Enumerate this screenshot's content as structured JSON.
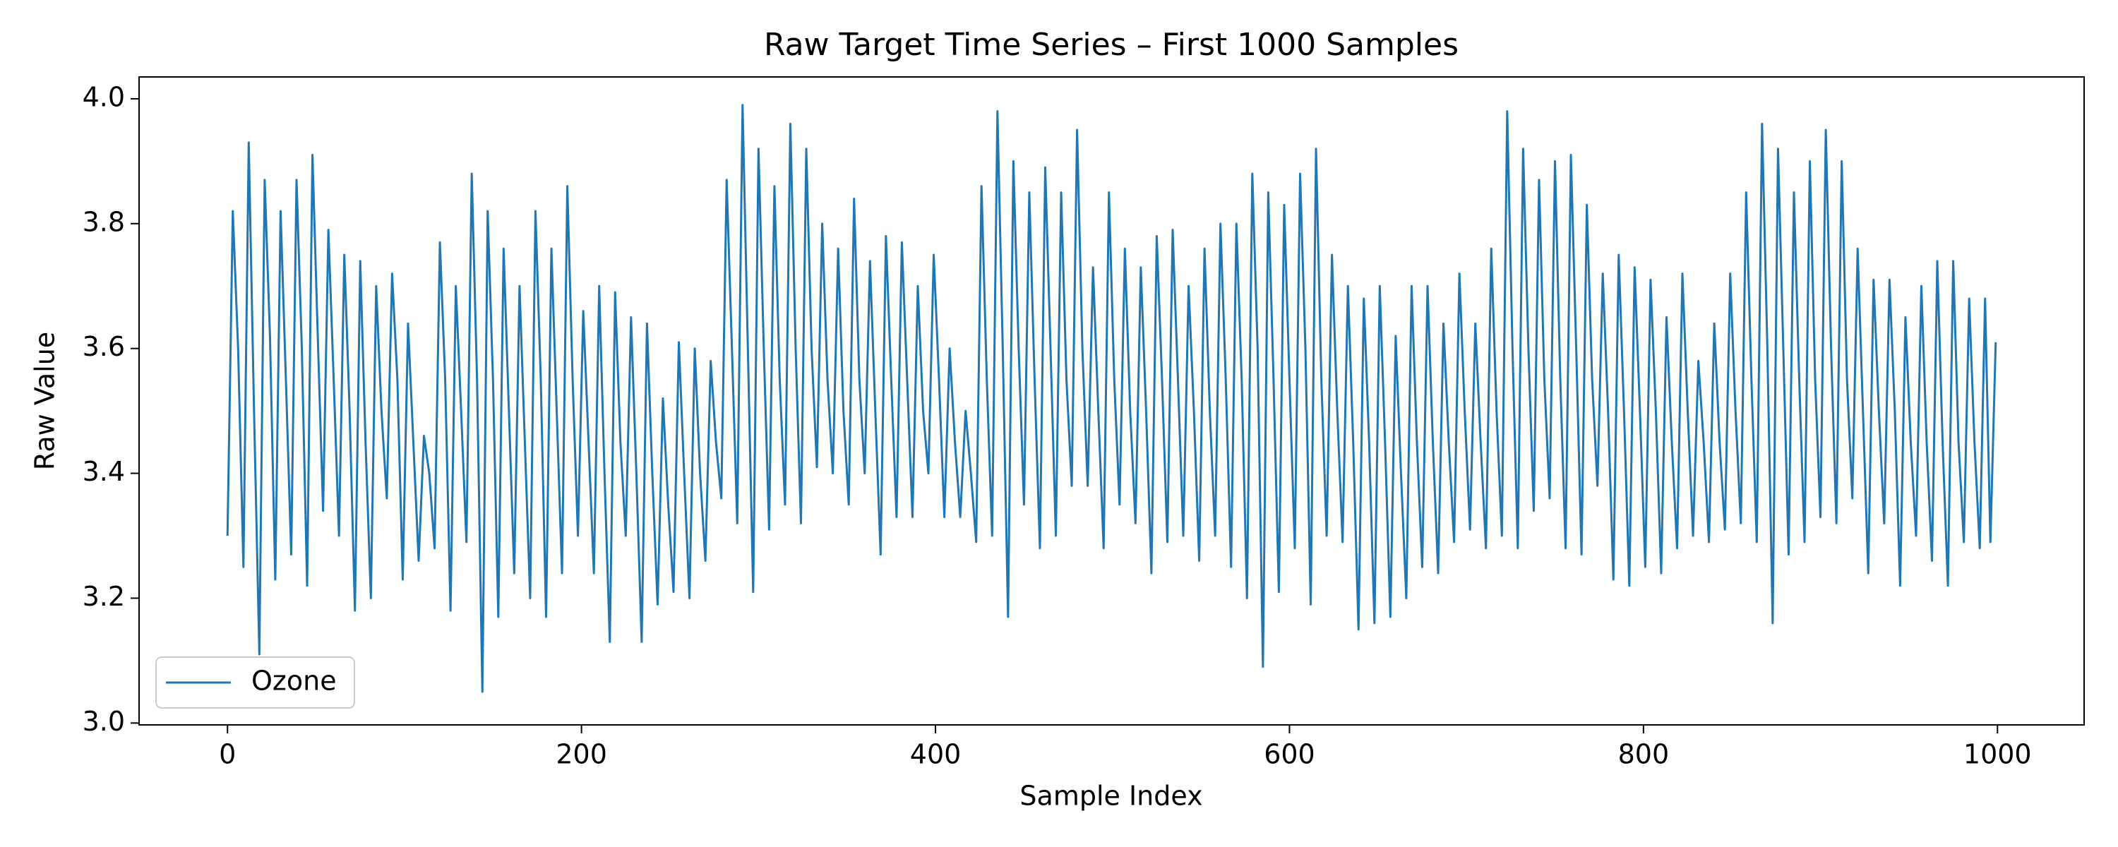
{
  "chart_data": {
    "type": "line",
    "title": "Raw Target Time Series – First 1000 Samples",
    "xlabel": "Sample Index",
    "ylabel": "Raw Value",
    "legend": "lower left",
    "grid": false,
    "xlim": [
      -49.95,
      1048.95
    ],
    "ylim": [
      2.997,
      4.035
    ],
    "xticks": [
      0,
      200,
      400,
      600,
      800,
      1000
    ],
    "yticks": [
      {
        "value": 3,
        "label": "3.0"
      },
      3.2,
      3.4,
      3.6,
      3.8,
      {
        "value": 4,
        "label": "4.0"
      }
    ],
    "x": [
      0,
      3,
      6,
      9,
      12,
      15,
      18,
      21,
      24,
      27,
      30,
      33,
      36,
      39,
      42,
      45,
      48,
      51,
      54,
      57,
      60,
      63,
      66,
      69,
      72,
      75,
      78,
      81,
      84,
      87,
      90,
      93,
      96,
      99,
      102,
      105,
      108,
      111,
      114,
      117,
      120,
      123,
      126,
      129,
      132,
      135,
      138,
      141,
      144,
      147,
      150,
      153,
      156,
      159,
      162,
      165,
      168,
      171,
      174,
      177,
      180,
      183,
      186,
      189,
      192,
      195,
      198,
      201,
      204,
      207,
      210,
      213,
      216,
      219,
      222,
      225,
      228,
      231,
      234,
      237,
      240,
      243,
      246,
      249,
      252,
      255,
      258,
      261,
      264,
      267,
      270,
      273,
      276,
      279,
      282,
      285,
      288,
      291,
      294,
      297,
      300,
      303,
      306,
      309,
      312,
      315,
      318,
      321,
      324,
      327,
      330,
      333,
      336,
      339,
      342,
      345,
      348,
      351,
      354,
      357,
      360,
      363,
      366,
      369,
      372,
      375,
      378,
      381,
      384,
      387,
      390,
      393,
      396,
      399,
      402,
      405,
      408,
      411,
      414,
      417,
      420,
      423,
      426,
      429,
      432,
      435,
      438,
      441,
      444,
      447,
      450,
      453,
      456,
      459,
      462,
      465,
      468,
      471,
      474,
      477,
      480,
      483,
      486,
      489,
      492,
      495,
      498,
      501,
      504,
      507,
      510,
      513,
      516,
      519,
      522,
      525,
      528,
      531,
      534,
      537,
      540,
      543,
      546,
      549,
      552,
      555,
      558,
      561,
      564,
      567,
      570,
      573,
      576,
      579,
      582,
      585,
      588,
      591,
      594,
      597,
      600,
      603,
      606,
      609,
      612,
      615,
      618,
      621,
      624,
      627,
      630,
      633,
      636,
      639,
      642,
      645,
      648,
      651,
      654,
      657,
      660,
      663,
      666,
      669,
      672,
      675,
      678,
      681,
      684,
      687,
      690,
      693,
      696,
      699,
      702,
      705,
      708,
      711,
      714,
      717,
      720,
      723,
      726,
      729,
      732,
      735,
      738,
      741,
      744,
      747,
      750,
      753,
      756,
      759,
      762,
      765,
      768,
      771,
      774,
      777,
      780,
      783,
      786,
      789,
      792,
      795,
      798,
      801,
      804,
      807,
      810,
      813,
      816,
      819,
      822,
      825,
      828,
      831,
      834,
      837,
      840,
      843,
      846,
      849,
      852,
      855,
      858,
      861,
      864,
      867,
      870,
      873,
      876,
      879,
      882,
      885,
      888,
      891,
      894,
      897,
      900,
      903,
      906,
      909,
      912,
      915,
      918,
      921,
      924,
      927,
      930,
      933,
      936,
      939,
      942,
      945,
      948,
      951,
      954,
      957,
      960,
      963,
      966,
      969,
      972,
      975,
      978,
      981,
      984,
      987,
      990,
      993,
      996,
      999
    ],
    "series": [
      {
        "name": "Ozone",
        "color": "#1f77b4",
        "values": [
          3.3,
          3.82,
          3.6,
          3.25,
          3.93,
          3.5,
          3.11,
          3.87,
          3.62,
          3.23,
          3.82,
          3.55,
          3.27,
          3.87,
          3.6,
          3.22,
          3.91,
          3.62,
          3.34,
          3.79,
          3.55,
          3.3,
          3.75,
          3.5,
          3.18,
          3.74,
          3.45,
          3.2,
          3.7,
          3.5,
          3.36,
          3.72,
          3.55,
          3.23,
          3.64,
          3.45,
          3.26,
          3.46,
          3.4,
          3.28,
          3.77,
          3.55,
          3.18,
          3.7,
          3.5,
          3.29,
          3.88,
          3.55,
          3.05,
          3.82,
          3.55,
          3.17,
          3.76,
          3.5,
          3.24,
          3.7,
          3.45,
          3.2,
          3.82,
          3.55,
          3.17,
          3.76,
          3.5,
          3.24,
          3.86,
          3.55,
          3.3,
          3.66,
          3.45,
          3.24,
          3.7,
          3.4,
          3.13,
          3.69,
          3.45,
          3.3,
          3.65,
          3.4,
          3.13,
          3.64,
          3.4,
          3.19,
          3.52,
          3.35,
          3.21,
          3.61,
          3.4,
          3.2,
          3.6,
          3.4,
          3.26,
          3.58,
          3.45,
          3.36,
          3.87,
          3.6,
          3.32,
          3.99,
          3.6,
          3.21,
          3.92,
          3.6,
          3.31,
          3.86,
          3.55,
          3.35,
          3.96,
          3.6,
          3.32,
          3.92,
          3.6,
          3.41,
          3.8,
          3.55,
          3.4,
          3.76,
          3.5,
          3.35,
          3.84,
          3.55,
          3.4,
          3.74,
          3.5,
          3.27,
          3.78,
          3.55,
          3.33,
          3.77,
          3.55,
          3.33,
          3.7,
          3.5,
          3.4,
          3.75,
          3.55,
          3.33,
          3.6,
          3.45,
          3.33,
          3.5,
          3.4,
          3.29,
          3.86,
          3.55,
          3.3,
          3.98,
          3.6,
          3.17,
          3.9,
          3.6,
          3.35,
          3.85,
          3.55,
          3.28,
          3.89,
          3.6,
          3.3,
          3.85,
          3.55,
          3.38,
          3.95,
          3.6,
          3.38,
          3.73,
          3.5,
          3.28,
          3.85,
          3.55,
          3.35,
          3.76,
          3.5,
          3.32,
          3.73,
          3.5,
          3.24,
          3.78,
          3.55,
          3.29,
          3.79,
          3.55,
          3.3,
          3.7,
          3.5,
          3.26,
          3.76,
          3.5,
          3.3,
          3.8,
          3.55,
          3.25,
          3.8,
          3.55,
          3.2,
          3.88,
          3.6,
          3.09,
          3.85,
          3.55,
          3.21,
          3.83,
          3.55,
          3.28,
          3.88,
          3.6,
          3.19,
          3.92,
          3.55,
          3.3,
          3.75,
          3.5,
          3.29,
          3.7,
          3.45,
          3.15,
          3.68,
          3.45,
          3.16,
          3.7,
          3.45,
          3.17,
          3.62,
          3.4,
          3.2,
          3.7,
          3.45,
          3.25,
          3.7,
          3.45,
          3.24,
          3.64,
          3.45,
          3.29,
          3.72,
          3.5,
          3.31,
          3.64,
          3.45,
          3.28,
          3.76,
          3.5,
          3.3,
          3.98,
          3.6,
          3.28,
          3.92,
          3.6,
          3.34,
          3.87,
          3.55,
          3.36,
          3.9,
          3.55,
          3.28,
          3.91,
          3.6,
          3.27,
          3.83,
          3.55,
          3.38,
          3.72,
          3.5,
          3.23,
          3.75,
          3.5,
          3.22,
          3.73,
          3.5,
          3.25,
          3.71,
          3.5,
          3.24,
          3.65,
          3.45,
          3.28,
          3.72,
          3.5,
          3.3,
          3.58,
          3.45,
          3.29,
          3.64,
          3.45,
          3.31,
          3.72,
          3.5,
          3.32,
          3.85,
          3.55,
          3.29,
          3.96,
          3.6,
          3.16,
          3.92,
          3.6,
          3.27,
          3.85,
          3.55,
          3.29,
          3.9,
          3.55,
          3.33,
          3.95,
          3.6,
          3.32,
          3.9,
          3.55,
          3.36,
          3.76,
          3.5,
          3.24,
          3.71,
          3.5,
          3.32,
          3.71,
          3.5,
          3.22,
          3.65,
          3.45,
          3.3,
          3.7,
          3.45,
          3.26,
          3.74,
          3.45,
          3.22,
          3.74,
          3.45,
          3.29,
          3.68,
          3.45,
          3.28,
          3.68,
          3.29,
          3.61
        ]
      }
    ]
  }
}
